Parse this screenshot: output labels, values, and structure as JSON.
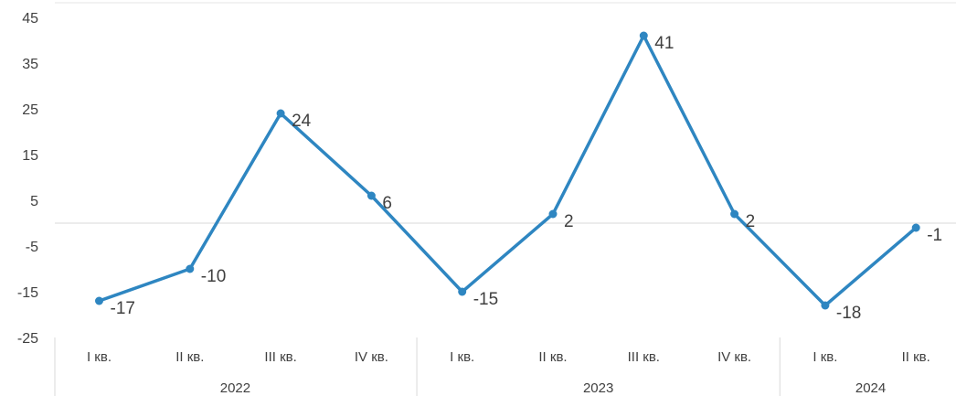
{
  "chart_data": {
    "type": "line",
    "groups": [
      {
        "label": "2022",
        "categories": [
          "I кв.",
          "II кв.",
          "III кв.",
          "IV кв."
        ]
      },
      {
        "label": "2023",
        "categories": [
          "I кв.",
          "II кв.",
          "III кв.",
          "IV кв."
        ]
      },
      {
        "label": "2024",
        "categories": [
          "I кв.",
          "II кв."
        ]
      }
    ],
    "series": [
      {
        "values": [
          -17,
          -10,
          24,
          6,
          -15,
          2,
          41,
          2,
          -18,
          -1
        ],
        "color": "#2E86C1"
      }
    ],
    "data_labels": [
      "-17",
      "-10",
      "24",
      "6",
      "-15",
      "2",
      "41",
      "2",
      "-18",
      "-1"
    ],
    "y_ticks": [
      {
        "value": 45,
        "label": "45"
      },
      {
        "value": 35,
        "label": "35"
      },
      {
        "value": 25,
        "label": "25"
      },
      {
        "value": 15,
        "label": "15"
      },
      {
        "value": 5,
        "label": "5"
      },
      {
        "value": -5,
        "label": "-5"
      },
      {
        "value": -15,
        "label": "-15"
      },
      {
        "value": -25,
        "label": "-25"
      }
    ],
    "ylim": [
      -25,
      45
    ],
    "zero_line": true,
    "grid": false,
    "title": "",
    "xlabel": "",
    "ylabel": ""
  }
}
